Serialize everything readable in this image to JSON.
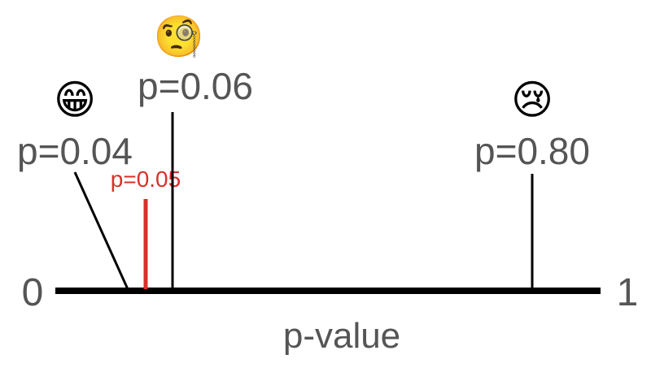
{
  "axis": {
    "min_label": "0",
    "max_label": "1",
    "title": "p-value"
  },
  "threshold": {
    "label": "p=0.05",
    "value": 0.05,
    "color": "#d9302a"
  },
  "markers": [
    {
      "id": "p04",
      "label": "p=0.04",
      "value": 0.04,
      "emoji": "😁",
      "emoji_name": "grinning-face-icon"
    },
    {
      "id": "p06",
      "label": "p=0.06",
      "value": 0.06,
      "emoji": "🧐",
      "emoji_name": "monocle-face-icon"
    },
    {
      "id": "p80",
      "label": "p=0.80",
      "value": 0.8,
      "emoji": "😢",
      "emoji_name": "crying-face-icon"
    }
  ],
  "colors": {
    "axis": "#000000",
    "text": "#555555",
    "leader": "#000000"
  }
}
